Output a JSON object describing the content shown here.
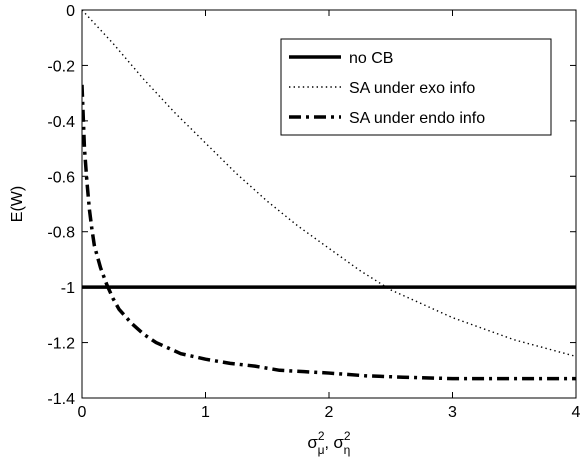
{
  "chart_data": {
    "type": "line",
    "title": "",
    "xlabel": "σ_μ², σ_η²",
    "ylabel": "E(W)",
    "xlim": [
      0,
      4
    ],
    "ylim": [
      -1.4,
      0
    ],
    "xticks": [
      0,
      1,
      2,
      3,
      4
    ],
    "xtick_labels": [
      "0",
      "1",
      "2",
      "3",
      "4"
    ],
    "yticks": [
      0,
      -0.2,
      -0.4,
      -0.6,
      -0.8,
      -1,
      -1.2,
      -1.4
    ],
    "ytick_labels": [
      "0",
      "-0.2",
      "-0.4",
      "-0.6",
      "-0.8",
      "-1",
      "-1.2",
      "-1.4"
    ],
    "grid": false,
    "legend_position": "top-right",
    "series": [
      {
        "name": "no CB",
        "style": "solid",
        "x": [
          0,
          4
        ],
        "y": [
          -1.0,
          -1.0
        ]
      },
      {
        "name": "SA under exo info",
        "style": "dotted",
        "x": [
          0,
          0.25,
          0.5,
          0.75,
          1.0,
          1.25,
          1.5,
          1.75,
          2.0,
          2.25,
          2.5,
          2.75,
          3.0,
          3.25,
          3.5,
          3.75,
          4.0
        ],
        "y": [
          0,
          -0.12,
          -0.25,
          -0.37,
          -0.48,
          -0.59,
          -0.69,
          -0.78,
          -0.86,
          -0.94,
          -1.01,
          -1.06,
          -1.11,
          -1.15,
          -1.19,
          -1.22,
          -1.25
        ]
      },
      {
        "name": "SA under endo info",
        "style": "dashdot",
        "x": [
          0,
          0.02,
          0.04,
          0.06,
          0.08,
          0.1,
          0.15,
          0.2,
          0.25,
          0.3,
          0.4,
          0.5,
          0.6,
          0.7,
          0.8,
          0.9,
          1.0,
          1.2,
          1.4,
          1.6,
          1.8,
          2.0,
          2.3,
          2.6,
          3.0,
          3.5,
          4.0
        ],
        "y": [
          -0.27,
          -0.5,
          -0.62,
          -0.72,
          -0.79,
          -0.85,
          -0.93,
          -0.99,
          -1.04,
          -1.08,
          -1.13,
          -1.17,
          -1.2,
          -1.22,
          -1.24,
          -1.25,
          -1.26,
          -1.275,
          -1.285,
          -1.3,
          -1.305,
          -1.31,
          -1.32,
          -1.325,
          -1.33,
          -1.33,
          -1.33
        ]
      }
    ]
  }
}
